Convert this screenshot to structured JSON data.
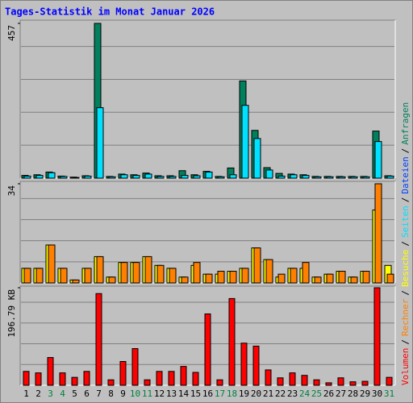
{
  "chart_data": {
    "type": "bar",
    "title": "Tages-Statistik im Monat Januar 2026",
    "categories": [
      "1",
      "2",
      "3",
      "4",
      "5",
      "6",
      "7",
      "8",
      "9",
      "10",
      "11",
      "12",
      "13",
      "14",
      "15",
      "16",
      "17",
      "18",
      "19",
      "20",
      "21",
      "22",
      "23",
      "24",
      "25",
      "26",
      "27",
      "28",
      "29",
      "30",
      "31"
    ],
    "category_colors": [
      "#000000",
      "#000000",
      "#008040",
      "#008040",
      "#000000",
      "#000000",
      "#000000",
      "#000000",
      "#000000",
      "#008040",
      "#008040",
      "#000000",
      "#000000",
      "#000000",
      "#000000",
      "#000000",
      "#008040",
      "#008040",
      "#000000",
      "#000000",
      "#000000",
      "#000000",
      "#000000",
      "#008040",
      "#008040",
      "#000000",
      "#000000",
      "#000000",
      "#000000",
      "#000000",
      "#008040"
    ],
    "panels": [
      {
        "ylim": [
          0,
          457
        ],
        "yticks": [
          457
        ],
        "series": [
          {
            "color": "#00805c",
            "values": [
              8,
              10,
              18,
              6,
              3,
              7,
              457,
              5,
              12,
              10,
              15,
              7,
              7,
              22,
              10,
              20,
              5,
              30,
              287,
              141,
              31,
              14,
              12,
              10,
              5,
              5,
              5,
              5,
              5,
              139,
              7
            ]
          },
          {
            "color": "#00e0ff",
            "values": [
              6,
              8,
              16,
              5,
              2,
              6,
              208,
              4,
              10,
              8,
              12,
              5,
              5,
              8,
              7,
              18,
              4,
              10,
              215,
              117,
              24,
              6,
              10,
              8,
              4,
              4,
              4,
              4,
              4,
              108,
              6
            ]
          }
        ]
      },
      {
        "ylim": [
          0,
          34
        ],
        "yticks": [
          34
        ],
        "series": [
          {
            "color": "#ffff00",
            "values": [
              5,
              5,
              13,
              5,
              1,
              5,
              9,
              2,
              7,
              7,
              9,
              6,
              5,
              2,
              6,
              3,
              3,
              4,
              5,
              12,
              8,
              2,
              5,
              5,
              2,
              3,
              4,
              2,
              4,
              25,
              6
            ]
          },
          {
            "color": "#ff8000",
            "values": [
              5,
              5,
              13,
              5,
              1,
              5,
              9,
              2,
              7,
              7,
              9,
              6,
              5,
              2,
              7,
              3,
              4,
              4,
              5,
              12,
              8,
              3,
              5,
              7,
              2,
              3,
              4,
              2,
              4,
              34,
              3
            ]
          }
        ]
      },
      {
        "ylim": [
          0,
          196.79
        ],
        "yticks": [
          {
            "value": 196.79,
            "label": "196.79 KB"
          }
        ],
        "series": [
          {
            "color": "#ff0000",
            "values": [
              28,
              25,
              56,
              25,
              16,
              28,
              185,
              11,
              48,
              74,
              11,
              28,
              28,
              38,
              26,
              144,
              11,
              175,
              85,
              79,
              31,
              15,
              25,
              20,
              11,
              5,
              15,
              7,
              8,
              196.79,
              16
            ]
          }
        ]
      }
    ],
    "legend_separator": "/",
    "legend": [
      {
        "name": "Volumen",
        "color": "#ff0000"
      },
      {
        "name": "Rechner",
        "color": "#ff8000"
      },
      {
        "name": "Besuche",
        "color": "#ffff00"
      },
      {
        "name": "Seiten",
        "color": "#00e0ff"
      },
      {
        "name": "Dateien",
        "color": "#0040ff"
      },
      {
        "name": "Anfragen",
        "color": "#00805c"
      }
    ]
  }
}
